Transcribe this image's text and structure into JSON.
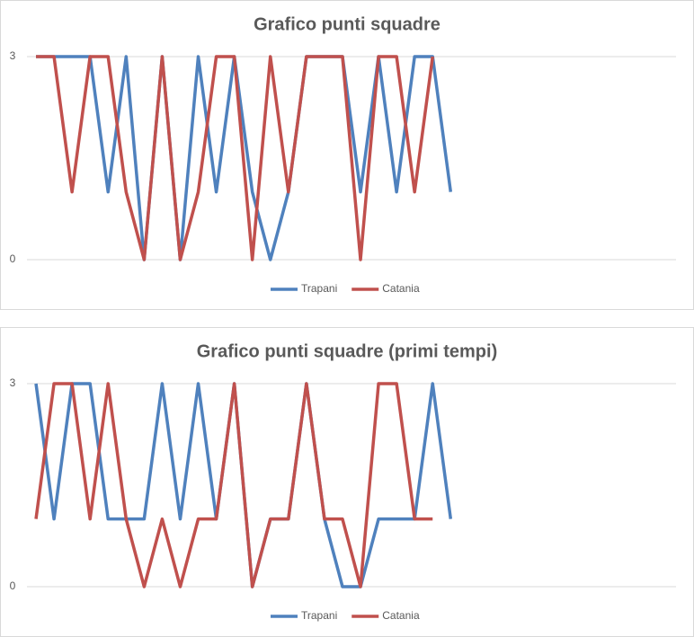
{
  "chart_data": [
    {
      "type": "line",
      "title": "Grafico punti squadre",
      "categories": [
        null,
        null,
        null,
        null,
        null,
        null,
        null,
        null,
        null,
        null,
        null,
        null,
        null,
        null,
        null,
        null,
        null,
        null,
        null,
        null,
        null,
        null,
        null,
        null,
        null,
        null,
        null,
        null,
        null,
        null,
        null,
        null,
        null,
        null,
        null,
        null
      ],
      "series": [
        {
          "name": "Trapani",
          "color": "#4f81bd",
          "values": [
            3,
            3,
            3,
            3,
            1,
            3,
            0,
            3,
            0,
            3,
            1,
            3,
            1,
            0,
            1,
            3,
            3,
            3,
            1,
            3,
            1,
            3,
            3,
            1,
            null,
            null,
            null,
            null,
            null,
            null,
            null,
            null,
            null,
            null,
            null,
            null
          ]
        },
        {
          "name": "Catania",
          "color": "#c0504d",
          "values": [
            3,
            3,
            1,
            3,
            3,
            1,
            0,
            3,
            0,
            1,
            3,
            3,
            0,
            3,
            1,
            3,
            3,
            3,
            0,
            3,
            3,
            1,
            3,
            null,
            null,
            null,
            null,
            null,
            null,
            null,
            null,
            null,
            null,
            null,
            null,
            null
          ]
        }
      ],
      "ylim": [
        0,
        3
      ],
      "yticks": [
        0,
        3
      ],
      "grid": true,
      "legend": "bottom"
    },
    {
      "type": "line",
      "title": "Grafico punti squadre (primi tempi)",
      "categories": [
        null,
        null,
        null,
        null,
        null,
        null,
        null,
        null,
        null,
        null,
        null,
        null,
        null,
        null,
        null,
        null,
        null,
        null,
        null,
        null,
        null,
        null,
        null,
        null,
        null,
        null,
        null,
        null,
        null,
        null,
        null,
        null,
        null,
        null,
        null,
        null
      ],
      "series": [
        {
          "name": "Trapani",
          "color": "#4f81bd",
          "values": [
            3,
            1,
            3,
            3,
            1,
            1,
            1,
            3,
            1,
            3,
            1,
            3,
            0,
            1,
            1,
            3,
            1,
            0,
            0,
            1,
            1,
            1,
            3,
            1,
            null,
            null,
            null,
            null,
            null,
            null,
            null,
            null,
            null,
            null,
            null,
            null
          ]
        },
        {
          "name": "Catania",
          "color": "#c0504d",
          "values": [
            1,
            3,
            3,
            1,
            3,
            1,
            0,
            1,
            0,
            1,
            1,
            3,
            0,
            1,
            1,
            3,
            1,
            1,
            0,
            3,
            3,
            1,
            1,
            null,
            null,
            null,
            null,
            null,
            null,
            null,
            null,
            null,
            null,
            null,
            null,
            null
          ]
        }
      ],
      "ylim": [
        0,
        3
      ],
      "yticks": [
        0,
        3
      ],
      "grid": true,
      "legend": "bottom"
    }
  ]
}
